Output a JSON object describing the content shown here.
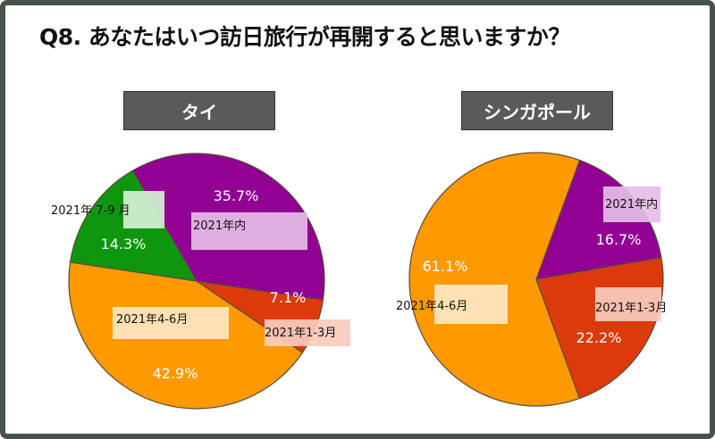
{
  "title": "Q8. あなたはいつ訪日旅行が再開すると思いますか？",
  "colors": {
    "purple": "#910093",
    "green": "#0f960f",
    "orange": "#ff9900",
    "red": "#dd3a0c",
    "label_purple": "#e6bde6",
    "label_green": "#d6f0d6",
    "label_orange": "#ffe7c2",
    "label_red": "#f8cbbd"
  },
  "chart_data": [
    {
      "type": "pie",
      "title": "タイ",
      "slices": [
        {
          "label": "2021年内",
          "value": 35.7,
          "value_label": "35.7%"
        },
        {
          "label": "2021年1-3月",
          "value": 7.1,
          "value_label": "7.1%"
        },
        {
          "label": "2021年4-6月",
          "value": 42.9,
          "value_label": "42.9%"
        },
        {
          "label": "2021年 7-9 月",
          "value": 14.3,
          "value_label": "14.3%"
        }
      ]
    },
    {
      "type": "pie",
      "title": "シンガポール",
      "slices": [
        {
          "label": "2021年内",
          "value": 16.7,
          "value_label": "16.7%"
        },
        {
          "label": "2021年1-3月",
          "value": 22.2,
          "value_label": "22.2%"
        },
        {
          "label": "2021年4-6月",
          "value": 61.1,
          "value_label": "61.1%"
        }
      ]
    }
  ]
}
